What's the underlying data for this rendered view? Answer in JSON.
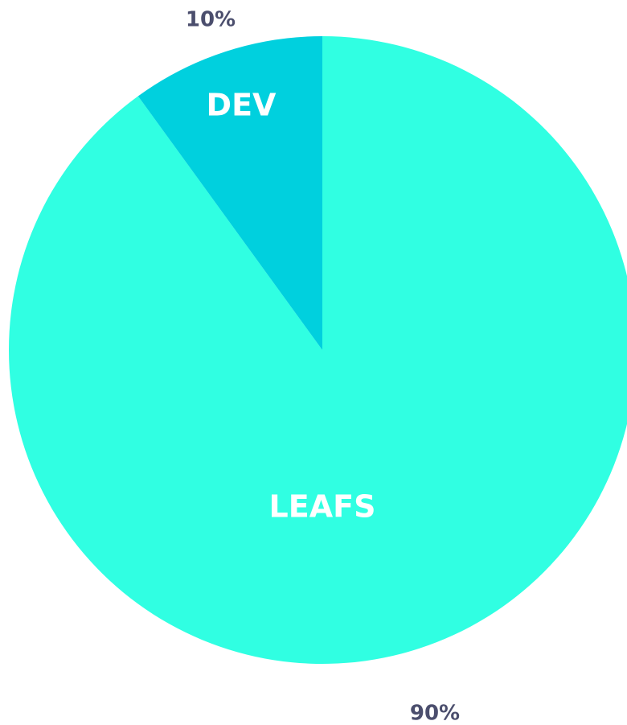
{
  "chart_data": {
    "type": "pie",
    "categories": [
      "LEAFS",
      "DEV"
    ],
    "values": [
      90,
      10
    ],
    "value_labels": [
      "90%",
      "10%"
    ],
    "colors": [
      "#30ffe2",
      "#00d0de"
    ]
  }
}
